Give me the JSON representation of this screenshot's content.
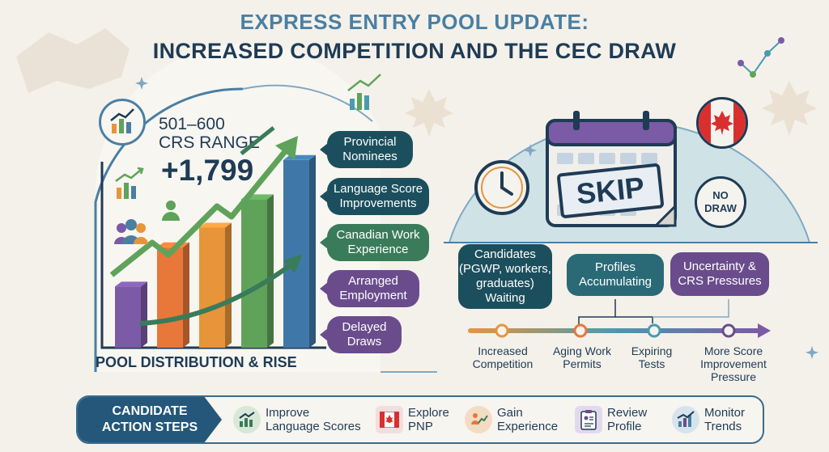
{
  "header": {
    "title_line1": "EXPRESS ENTRY POOL UPDATE:",
    "title_line2": "INCREASED COMPETITION AND THE CEC DRAW"
  },
  "pool": {
    "range_line1": "501–600",
    "range_line2": "CRS RANGE",
    "increase": "+1,799",
    "label": "POOL DISTRIBUTION & RISE",
    "bar_levels": [
      0.28,
      0.46,
      0.55,
      0.68,
      0.86
    ],
    "bar_colors": [
      "#7b5aa6",
      "#e8773a",
      "#e8943a",
      "#5fa35a",
      "#3f78a8"
    ]
  },
  "drivers": [
    {
      "label_line1": "Provincial",
      "label_line2": "Nominees"
    },
    {
      "label_line1": "Language Score",
      "label_line2": "Improvements"
    },
    {
      "label_line1": "Canadian Work",
      "label_line2": "Experience"
    },
    {
      "label_line1": "Arranged",
      "label_line2": "Employment"
    },
    {
      "label_line1": "Delayed",
      "label_line2": "Draws"
    }
  ],
  "draw_status": {
    "skip_label": "SKIP",
    "no_draw_line1": "NO",
    "no_draw_line2": "DRAW"
  },
  "effects": [
    {
      "lines": [
        "Candidates",
        "(PGWP, workers,",
        "graduates)",
        "Waiting"
      ]
    },
    {
      "lines": [
        "Profiles",
        "Accumulating"
      ]
    },
    {
      "lines": [
        "Uncertainty &",
        "CRS Pressures"
      ]
    }
  ],
  "timeline": [
    {
      "lines": [
        "Increased",
        "Competition"
      ]
    },
    {
      "lines": [
        "Aging Work",
        "Permits"
      ]
    },
    {
      "lines": [
        "Expiring",
        "Tests"
      ]
    },
    {
      "lines": [
        "More Score",
        "Improvement",
        "Pressure"
      ]
    }
  ],
  "actions": {
    "head_line1": "CANDIDATE",
    "head_line2": "ACTION STEPS",
    "steps": [
      {
        "line1": "Improve",
        "line2": "Language Scores",
        "icon": "chart-up-icon"
      },
      {
        "line1": "Explore",
        "line2": "PNP",
        "icon": "canada-flag-icon"
      },
      {
        "line1": "Gain",
        "line2": "Experience",
        "icon": "growth-icon"
      },
      {
        "line1": "Review",
        "line2": "Profile",
        "icon": "clipboard-icon"
      },
      {
        "line1": "Monitor",
        "line2": "Trends",
        "icon": "trend-chart-icon"
      }
    ]
  },
  "colors": {
    "navy": "#1f3b55",
    "blue": "#4a7fa3",
    "teal": "#1c4f5d",
    "green": "#3a7b5a",
    "purple": "#6a4c8c",
    "accent_orange": "#e8773a"
  }
}
